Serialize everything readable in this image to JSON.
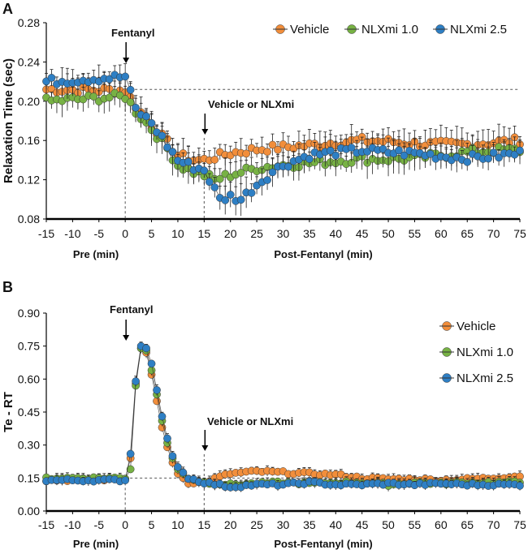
{
  "chart_data": [
    {
      "type": "scatter",
      "panel_label": "A",
      "ylabel": "Relaxation Time (sec)",
      "ylim": [
        0.08,
        0.28
      ],
      "yticks": [
        "0.08",
        "0.12",
        "0.16",
        "0.20",
        "0.24",
        "0.28"
      ],
      "xlim": [
        -15,
        75
      ],
      "xticks": [
        "-15",
        "-10",
        "-5",
        "0",
        "5",
        "10",
        "15",
        "20",
        "25",
        "30",
        "35",
        "40",
        "45",
        "50",
        "55",
        "60",
        "65",
        "70",
        "75"
      ],
      "xlabel_pre": "Pre (min)",
      "xlabel_post": "Post-Fentanyl (min)",
      "reference_y": 0.212,
      "annotations": [
        {
          "text": "Fentanyl",
          "x": 0
        },
        {
          "text": "Vehicle or NLXmi",
          "x": 15
        }
      ],
      "legend_position": "top-right",
      "series": [
        {
          "name": "Vehicle",
          "color": "#f28e3b",
          "points": [
            [
              -15,
              0.212
            ],
            [
              0,
              0.211
            ],
            [
              2,
              0.195
            ],
            [
              5,
              0.175
            ],
            [
              8,
              0.158
            ],
            [
              10,
              0.145
            ],
            [
              13,
              0.14
            ],
            [
              15,
              0.14
            ],
            [
              17,
              0.143
            ],
            [
              20,
              0.147
            ],
            [
              25,
              0.151
            ],
            [
              30,
              0.153
            ],
            [
              35,
              0.155
            ],
            [
              40,
              0.158
            ],
            [
              45,
              0.16
            ],
            [
              50,
              0.159
            ],
            [
              55,
              0.157
            ],
            [
              60,
              0.156
            ],
            [
              65,
              0.156
            ],
            [
              70,
              0.158
            ],
            [
              75,
              0.16
            ]
          ]
        },
        {
          "name": "NLXmi 1.0",
          "color": "#77b244",
          "points": [
            [
              -15,
              0.2
            ],
            [
              0,
              0.205
            ],
            [
              2,
              0.19
            ],
            [
              5,
              0.172
            ],
            [
              8,
              0.152
            ],
            [
              10,
              0.135
            ],
            [
              13,
              0.128
            ],
            [
              15,
              0.125
            ],
            [
              17,
              0.12
            ],
            [
              20,
              0.125
            ],
            [
              25,
              0.132
            ],
            [
              30,
              0.135
            ],
            [
              35,
              0.137
            ],
            [
              40,
              0.139
            ],
            [
              45,
              0.141
            ],
            [
              50,
              0.141
            ],
            [
              55,
              0.142
            ],
            [
              60,
              0.145
            ],
            [
              65,
              0.148
            ],
            [
              70,
              0.15
            ],
            [
              75,
              0.15
            ]
          ]
        },
        {
          "name": "NLXmi 2.5",
          "color": "#2e7fc4",
          "points": [
            [
              -15,
              0.22
            ],
            [
              0,
              0.225
            ],
            [
              2,
              0.192
            ],
            [
              5,
              0.178
            ],
            [
              8,
              0.155
            ],
            [
              10,
              0.14
            ],
            [
              13,
              0.133
            ],
            [
              15,
              0.13
            ],
            [
              17,
              0.11
            ],
            [
              18,
              0.1
            ],
            [
              20,
              0.103
            ],
            [
              22,
              0.1
            ],
            [
              25,
              0.115
            ],
            [
              28,
              0.128
            ],
            [
              30,
              0.135
            ],
            [
              35,
              0.145
            ],
            [
              40,
              0.148
            ],
            [
              45,
              0.15
            ],
            [
              50,
              0.148
            ],
            [
              55,
              0.147
            ],
            [
              60,
              0.144
            ],
            [
              65,
              0.142
            ],
            [
              70,
              0.144
            ],
            [
              75,
              0.147
            ]
          ]
        }
      ]
    },
    {
      "type": "scatter",
      "panel_label": "B",
      "ylabel": "Te - RT",
      "ylim": [
        0.0,
        0.9
      ],
      "yticks": [
        "0.00",
        "0.15",
        "0.30",
        "0.45",
        "0.60",
        "0.75",
        "0.90"
      ],
      "xlim": [
        -15,
        75
      ],
      "xticks": [
        "-15",
        "-10",
        "-5",
        "0",
        "5",
        "10",
        "15",
        "20",
        "25",
        "30",
        "35",
        "40",
        "45",
        "50",
        "55",
        "60",
        "65",
        "70",
        "75"
      ],
      "xlabel_pre": "Pre (min)",
      "xlabel_post": "Post-Fentanyl (min)",
      "reference_y": 0.15,
      "annotations": [
        {
          "text": "Fentanyl",
          "x": 0
        },
        {
          "text": "Vehicle or NLXmi",
          "x": 15
        }
      ],
      "legend_position": "top-right",
      "series": [
        {
          "name": "Vehicle",
          "color": "#f28e3b",
          "points": [
            [
              -15,
              0.14
            ],
            [
              0,
              0.145
            ],
            [
              1,
              0.24
            ],
            [
              2,
              0.58
            ],
            [
              3,
              0.74
            ],
            [
              4,
              0.72
            ],
            [
              5,
              0.62
            ],
            [
              6,
              0.5
            ],
            [
              7,
              0.38
            ],
            [
              8,
              0.29
            ],
            [
              9,
              0.22
            ],
            [
              10,
              0.17
            ],
            [
              12,
              0.13
            ],
            [
              15,
              0.13
            ],
            [
              18,
              0.155
            ],
            [
              20,
              0.17
            ],
            [
              25,
              0.18
            ],
            [
              30,
              0.175
            ],
            [
              35,
              0.17
            ],
            [
              40,
              0.165
            ],
            [
              45,
              0.15
            ],
            [
              50,
              0.145
            ],
            [
              55,
              0.145
            ],
            [
              60,
              0.14
            ],
            [
              65,
              0.145
            ],
            [
              70,
              0.15
            ],
            [
              75,
              0.16
            ]
          ]
        },
        {
          "name": "NLXmi 1.0",
          "color": "#77b244",
          "points": [
            [
              -15,
              0.15
            ],
            [
              0,
              0.15
            ],
            [
              1,
              0.19
            ],
            [
              2,
              0.57
            ],
            [
              3,
              0.74
            ],
            [
              4,
              0.73
            ],
            [
              5,
              0.64
            ],
            [
              6,
              0.53
            ],
            [
              7,
              0.41
            ],
            [
              8,
              0.31
            ],
            [
              9,
              0.24
            ],
            [
              10,
              0.19
            ],
            [
              12,
              0.15
            ],
            [
              15,
              0.13
            ],
            [
              20,
              0.12
            ],
            [
              25,
              0.125
            ],
            [
              30,
              0.13
            ],
            [
              35,
              0.125
            ],
            [
              40,
              0.13
            ],
            [
              45,
              0.13
            ],
            [
              50,
              0.12
            ],
            [
              55,
              0.13
            ],
            [
              60,
              0.125
            ],
            [
              65,
              0.13
            ],
            [
              70,
              0.13
            ],
            [
              75,
              0.13
            ]
          ]
        },
        {
          "name": "NLXmi 2.5",
          "color": "#2e7fc4",
          "points": [
            [
              -15,
              0.14
            ],
            [
              0,
              0.14
            ],
            [
              1,
              0.26
            ],
            [
              2,
              0.59
            ],
            [
              3,
              0.75
            ],
            [
              4,
              0.74
            ],
            [
              5,
              0.67
            ],
            [
              6,
              0.55
            ],
            [
              7,
              0.43
            ],
            [
              8,
              0.33
            ],
            [
              9,
              0.25
            ],
            [
              10,
              0.2
            ],
            [
              12,
              0.15
            ],
            [
              15,
              0.13
            ],
            [
              20,
              0.11
            ],
            [
              25,
              0.12
            ],
            [
              30,
              0.12
            ],
            [
              35,
              0.13
            ],
            [
              40,
              0.12
            ],
            [
              45,
              0.12
            ],
            [
              50,
              0.125
            ],
            [
              55,
              0.12
            ],
            [
              60,
              0.125
            ],
            [
              65,
              0.12
            ],
            [
              70,
              0.12
            ],
            [
              75,
              0.12
            ]
          ]
        }
      ]
    }
  ]
}
